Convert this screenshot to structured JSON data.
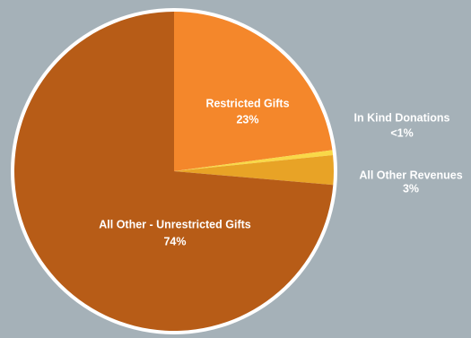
{
  "chart_data": {
    "type": "pie",
    "categories": [
      "Restricted Gifts",
      "In Kind Donations",
      "All Other Revenues",
      "All Other - Unrestricted Gifts"
    ],
    "values": [
      23,
      0.5,
      3,
      74
    ],
    "value_labels": [
      "23%",
      "<1%",
      "3%",
      "74%"
    ],
    "colors": [
      "#f4872b",
      "#f9d848",
      "#e8a326",
      "#b75c17"
    ]
  }
}
